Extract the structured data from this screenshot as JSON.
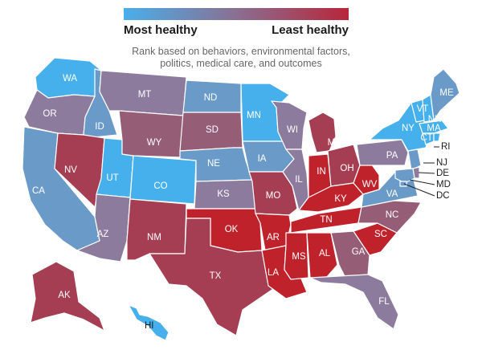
{
  "legend": {
    "left_label": "Most healthy",
    "right_label": "Least healthy",
    "color_most_healthy": "#4aaeea",
    "color_mid": "#8a6f92",
    "color_least_healthy": "#b8263a"
  },
  "subtitle_lines": [
    "Rank based on behaviors, environmental factors,",
    "politics, medical care, and outcomes"
  ],
  "palette": {
    "healthiest": "#45b0ec",
    "healthy": "#6a9ac8",
    "mid": "#8d7b9e",
    "midlow": "#955d76",
    "low": "#a63e53",
    "least": "#c0222c",
    "border": "#ffffff"
  },
  "states": {
    "WA": {
      "label": "WA",
      "tier": "healthiest"
    },
    "OR": {
      "label": "OR",
      "tier": "mid"
    },
    "CA": {
      "label": "CA",
      "tier": "healthy"
    },
    "ID": {
      "label": "ID",
      "tier": "healthy"
    },
    "NV": {
      "label": "NV",
      "tier": "low"
    },
    "UT": {
      "label": "UT",
      "tier": "healthiest"
    },
    "AZ": {
      "label": "AZ",
      "tier": "mid"
    },
    "MT": {
      "label": "MT",
      "tier": "mid"
    },
    "WY": {
      "label": "WY",
      "tier": "midlow"
    },
    "CO": {
      "label": "CO",
      "tier": "healthiest"
    },
    "NM": {
      "label": "NM",
      "tier": "low"
    },
    "ND": {
      "label": "ND",
      "tier": "healthy"
    },
    "SD": {
      "label": "SD",
      "tier": "midlow"
    },
    "NE": {
      "label": "NE",
      "tier": "healthy"
    },
    "KS": {
      "label": "KS",
      "tier": "mid"
    },
    "OK": {
      "label": "OK",
      "tier": "least"
    },
    "TX": {
      "label": "TX",
      "tier": "low"
    },
    "MN": {
      "label": "MN",
      "tier": "healthiest"
    },
    "IA": {
      "label": "IA",
      "tier": "healthy"
    },
    "MO": {
      "label": "MO",
      "tier": "low"
    },
    "AR": {
      "label": "AR",
      "tier": "least"
    },
    "LA": {
      "label": "LA",
      "tier": "least"
    },
    "WI": {
      "label": "WI",
      "tier": "mid"
    },
    "IL": {
      "label": "IL",
      "tier": "mid"
    },
    "MI": {
      "label": "MI",
      "tier": "low"
    },
    "IN": {
      "label": "IN",
      "tier": "least"
    },
    "OH": {
      "label": "OH",
      "tier": "low"
    },
    "KY": {
      "label": "KY",
      "tier": "least"
    },
    "TN": {
      "label": "TN",
      "tier": "least"
    },
    "MS": {
      "label": "MS",
      "tier": "least"
    },
    "AL": {
      "label": "AL",
      "tier": "least"
    },
    "GA": {
      "label": "GA",
      "tier": "midlow"
    },
    "FL": {
      "label": "FL",
      "tier": "mid"
    },
    "SC": {
      "label": "SC",
      "tier": "least"
    },
    "NC": {
      "label": "NC",
      "tier": "midlow"
    },
    "VA": {
      "label": "VA",
      "tier": "healthy"
    },
    "WV": {
      "label": "WV",
      "tier": "least"
    },
    "PA": {
      "label": "PA",
      "tier": "mid"
    },
    "NY": {
      "label": "NY",
      "tier": "healthiest"
    },
    "VT": {
      "label": "VT",
      "tier": "healthiest"
    },
    "NH": {
      "label": "NH",
      "tier": "healthiest"
    },
    "MA": {
      "label": "MA",
      "tier": "healthiest"
    },
    "CT": {
      "label": "CT",
      "tier": "healthiest"
    },
    "RI": {
      "label": "RI",
      "tier": "healthiest"
    },
    "NJ": {
      "label": "NJ",
      "tier": "healthy"
    },
    "DE": {
      "label": "DE",
      "tier": "mid"
    },
    "MD": {
      "label": "MD",
      "tier": "healthy"
    },
    "DC": {
      "label": "DC",
      "tier": "healthy"
    },
    "ME": {
      "label": "ME",
      "tier": "healthy"
    },
    "AK": {
      "label": "AK",
      "tier": "low"
    },
    "HI": {
      "label": "HI",
      "tier": "healthiest"
    }
  }
}
